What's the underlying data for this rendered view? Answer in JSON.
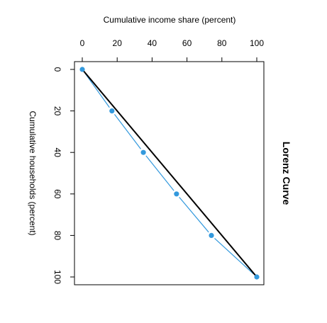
{
  "chart_data": {
    "type": "line",
    "title": "Lorenz Curve",
    "xlabel": "Cumulative income share (percent)",
    "ylabel": "Cumulative households (percent)",
    "xlim": [
      0,
      100
    ],
    "ylim": [
      0,
      100
    ],
    "x_ticks": [
      "0",
      "20",
      "40",
      "60",
      "80",
      "100"
    ],
    "y_ticks": [
      "0",
      "20",
      "40",
      "60",
      "80",
      "100"
    ],
    "y_axis_reversed": true,
    "grid": false,
    "series": [
      {
        "points": [
          {
            "x": 0,
            "y": 0
          },
          {
            "x": 17,
            "y": 20
          },
          {
            "x": 35,
            "y": 40
          },
          {
            "x": 54,
            "y": 60
          },
          {
            "x": 74,
            "y": 80
          },
          {
            "x": 100,
            "y": 100
          }
        ],
        "color": "#3399dd"
      },
      {
        "points": [
          {
            "x": 0,
            "y": 0
          },
          {
            "x": 100,
            "y": 100
          }
        ],
        "color": "#000000"
      }
    ]
  }
}
